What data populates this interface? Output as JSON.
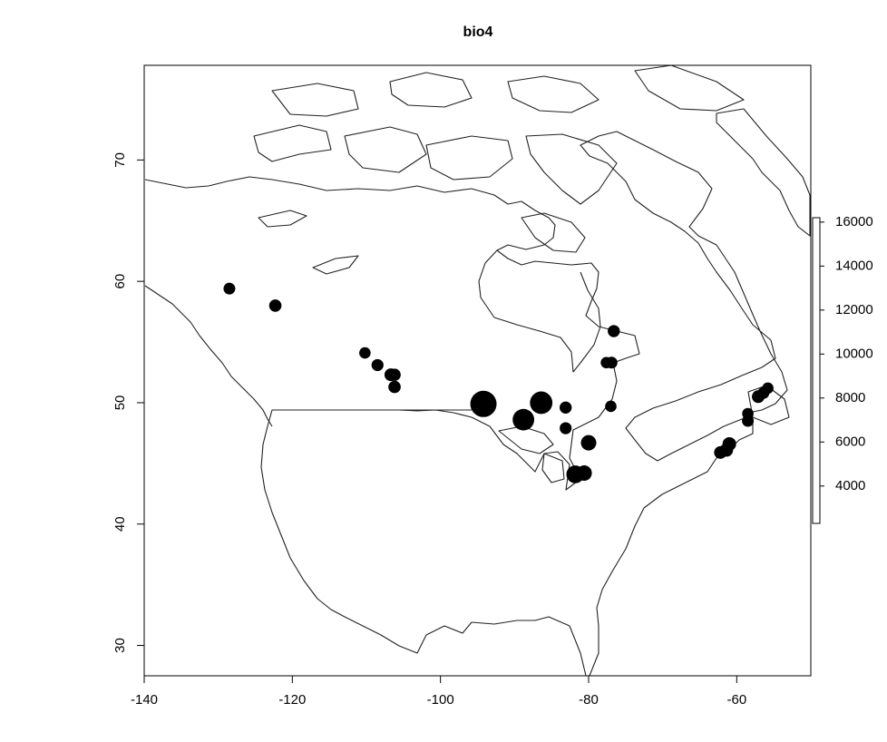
{
  "chart_data": {
    "type": "scatter",
    "title": "bio4",
    "xlim": [
      -140,
      -50
    ],
    "ylim": [
      27.5,
      77.8
    ],
    "x_ticks": [
      -140,
      -120,
      -100,
      -80,
      -60
    ],
    "y_ticks": [
      30,
      40,
      50,
      60,
      70
    ],
    "legend": {
      "placement": "right",
      "ticks": [
        4000,
        6000,
        8000,
        10000,
        12000,
        14000,
        16000
      ],
      "range": [
        2300,
        16200
      ]
    },
    "points": [
      {
        "lon": -128.5,
        "lat": 59.4,
        "value": 5200
      },
      {
        "lon": -122.3,
        "lat": 58.0,
        "value": 5600
      },
      {
        "lon": -110.2,
        "lat": 54.1,
        "value": 5000
      },
      {
        "lon": -108.5,
        "lat": 53.1,
        "value": 5300
      },
      {
        "lon": -106.7,
        "lat": 52.3,
        "value": 5800
      },
      {
        "lon": -106.2,
        "lat": 52.3,
        "value": 5600
      },
      {
        "lon": -106.2,
        "lat": 51.3,
        "value": 5500
      },
      {
        "lon": -94.2,
        "lat": 49.9,
        "value": 14500
      },
      {
        "lon": -88.8,
        "lat": 48.6,
        "value": 11500
      },
      {
        "lon": -86.4,
        "lat": 50.0,
        "value": 12000
      },
      {
        "lon": -83.1,
        "lat": 49.6,
        "value": 5400
      },
      {
        "lon": -83.1,
        "lat": 47.9,
        "value": 5300
      },
      {
        "lon": -80.0,
        "lat": 46.7,
        "value": 7500
      },
      {
        "lon": -81.8,
        "lat": 44.1,
        "value": 9000
      },
      {
        "lon": -80.6,
        "lat": 44.2,
        "value": 7500
      },
      {
        "lon": -77.6,
        "lat": 53.3,
        "value": 5000
      },
      {
        "lon": -76.9,
        "lat": 53.3,
        "value": 5200
      },
      {
        "lon": -76.6,
        "lat": 55.9,
        "value": 5400
      },
      {
        "lon": -77.0,
        "lat": 49.7,
        "value": 5000
      },
      {
        "lon": -58.5,
        "lat": 49.1,
        "value": 5000
      },
      {
        "lon": -58.5,
        "lat": 48.5,
        "value": 5200
      },
      {
        "lon": -57.1,
        "lat": 50.5,
        "value": 5800
      },
      {
        "lon": -56.4,
        "lat": 50.8,
        "value": 5200
      },
      {
        "lon": -55.8,
        "lat": 51.2,
        "value": 5000
      },
      {
        "lon": -62.2,
        "lat": 45.9,
        "value": 5800
      },
      {
        "lon": -61.4,
        "lat": 46.1,
        "value": 6200
      },
      {
        "lon": -61.0,
        "lat": 46.6,
        "value": 6300
      }
    ]
  }
}
